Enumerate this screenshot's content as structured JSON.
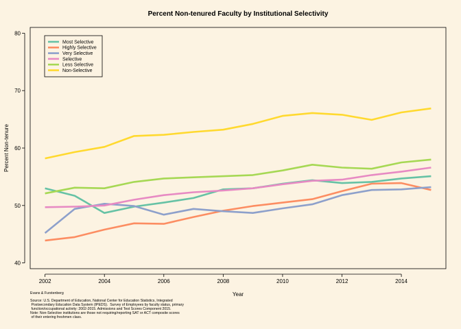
{
  "chart_data": {
    "type": "line",
    "title": "Percent Non-tenured Faculty by Institutional Selectivity",
    "xlabel": "Year",
    "ylabel": "Percent Non-tenure",
    "xlim": [
      2001.5,
      2015.5
    ],
    "ylim": [
      39,
      81
    ],
    "x_ticks": [
      2002,
      2004,
      2006,
      2008,
      2010,
      2012,
      2014
    ],
    "y_ticks": [
      40,
      50,
      60,
      70,
      80
    ],
    "grid": false,
    "legend_position": "top-left",
    "x": [
      2002,
      2003,
      2004,
      2005,
      2006,
      2007,
      2008,
      2009,
      2010,
      2011,
      2012,
      2013,
      2014,
      2015
    ],
    "series": [
      {
        "name": "Most Selective",
        "color": "#66c2a5",
        "values": [
          53.0,
          51.7,
          48.7,
          49.8,
          50.5,
          51.3,
          52.8,
          53.0,
          53.8,
          54.4,
          53.9,
          54.1,
          54.7,
          55.1
        ]
      },
      {
        "name": "Highly Selective",
        "color": "#fc8d62",
        "values": [
          43.9,
          44.5,
          45.8,
          46.9,
          46.8,
          48.0,
          49.1,
          49.9,
          50.5,
          51.1,
          52.5,
          53.8,
          53.9,
          52.7
        ]
      },
      {
        "name": "Very Selective",
        "color": "#8da0cb",
        "values": [
          45.2,
          49.4,
          50.3,
          49.9,
          48.4,
          49.4,
          49.0,
          48.7,
          49.5,
          50.2,
          51.8,
          52.7,
          52.8,
          53.2
        ]
      },
      {
        "name": "Selective",
        "color": "#e78ac3",
        "values": [
          49.7,
          49.8,
          50.0,
          51.0,
          51.8,
          52.3,
          52.6,
          53.0,
          53.7,
          54.3,
          54.5,
          55.3,
          55.9,
          56.6
        ]
      },
      {
        "name": "Less Selective",
        "color": "#a6d854",
        "values": [
          52.1,
          53.1,
          53.0,
          54.1,
          54.7,
          54.9,
          55.1,
          55.3,
          56.1,
          57.1,
          56.6,
          56.4,
          57.5,
          58.0
        ]
      },
      {
        "name": "Non-Selective",
        "color": "#ffd92f",
        "values": [
          58.2,
          59.3,
          60.2,
          62.1,
          62.3,
          62.8,
          63.2,
          64.2,
          65.6,
          66.1,
          65.8,
          64.9,
          66.2,
          66.9
        ]
      }
    ]
  },
  "notes": {
    "credit": "Evans & Furstenberg",
    "source_lines": [
      "Source: U.S. Department of Education, National Center for Education Statistics, Integrated",
      " Postsecondary Education Data System (IPEDS).  Survey of Employees by faculty status, primary",
      " function/occupational activity: 2002-2015. Admissions and Test Scores Component 2015.",
      "Note: Non-Selective institutions are those not requiring/reporting SAT or ACT composite scores",
      " of their entering freshmen class."
    ]
  }
}
